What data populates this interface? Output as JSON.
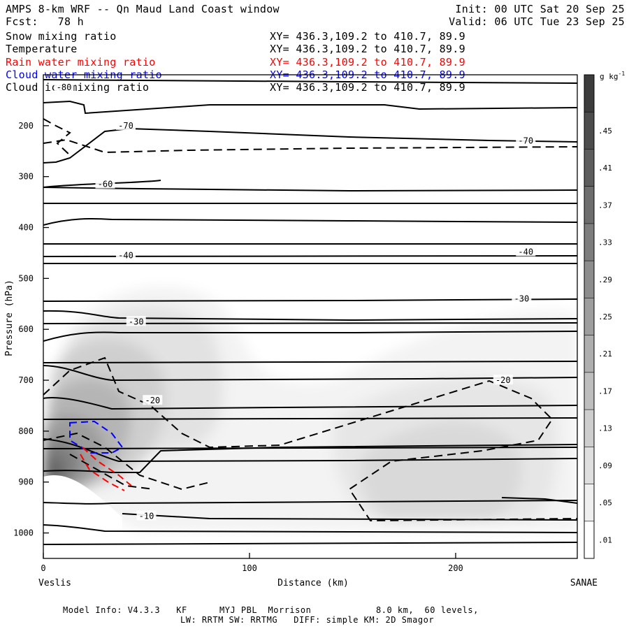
{
  "header": {
    "title": "AMPS 8-km WRF -- Qn Maud Land Coast window",
    "forecast": "Fcst:   78 h",
    "init": "Init: 00 UTC Sat 20 Sep 25",
    "valid": "Valid: 06 UTC Tue 23 Sep 25"
  },
  "legend": [
    {
      "name": "Snow mixing ratio",
      "xy": "XY= 436.3,109.2 to 410.7, 89.9",
      "color": "#000000"
    },
    {
      "name": "Temperature",
      "xy": "XY= 436.3,109.2 to 410.7, 89.9",
      "color": "#000000"
    },
    {
      "name": "Rain water mixing ratio",
      "xy": "XY= 436.3,109.2 to 410.7, 89.9",
      "color": "#ff0000"
    },
    {
      "name": "Cloud water mixing ratio",
      "xy": "XY= 436.3,109.2 to 410.7, 89.9",
      "color": "#0000ff"
    },
    {
      "name": "Cloud ice mixing ratio",
      "xy": "XY= 436.3,109.2 to 410.7, 89.9",
      "color": "#000000"
    }
  ],
  "footer": {
    "line1": "Model Info: V4.3.3   KF      MYJ PBL  Morrison            8.0 km,  60 levels,",
    "line2": "LW: RRTM SW: RRTMG   DIFF: simple KM: 2D Smagor"
  },
  "chart_data": {
    "type": "cross-section contour",
    "xlabel": "Distance (km)",
    "ylabel": "Pressure (hPa)",
    "x_ticks": [
      0,
      100,
      200
    ],
    "xlim": [
      0,
      259
    ],
    "y_ticks": [
      200,
      300,
      400,
      500,
      600,
      700,
      800,
      900,
      1000
    ],
    "ylim": [
      1050,
      100
    ],
    "start_label": "Veslis",
    "end_label": "SANAE",
    "colorbar": {
      "units": "g kg",
      "units_exp": "-1",
      "levels": [
        ".01",
        ".05",
        ".09",
        ".13",
        ".17",
        ".21",
        ".25",
        ".29",
        ".33",
        ".37",
        ".41",
        ".45"
      ],
      "min": 0,
      "max": 0.47
    },
    "temperature_labels": [
      {
        "text": "-70",
        "x": 40,
        "p": 200
      },
      {
        "text": "-70",
        "x": 234,
        "p": 230
      },
      {
        "text": "-60",
        "x": 30,
        "p": 315
      },
      {
        "text": "-40",
        "x": 40,
        "p": 455
      },
      {
        "text": "-40",
        "x": 234,
        "p": 448
      },
      {
        "text": "-30",
        "x": 45,
        "p": 585
      },
      {
        "text": "-30",
        "x": 232,
        "p": 540
      },
      {
        "text": "-20",
        "x": 53,
        "p": 740
      },
      {
        "text": "-20",
        "x": 223,
        "p": 700
      },
      {
        "text": "-10",
        "x": 50,
        "p": 967
      },
      {
        "text": "-80",
        "x": 10,
        "p": 125
      }
    ]
  }
}
